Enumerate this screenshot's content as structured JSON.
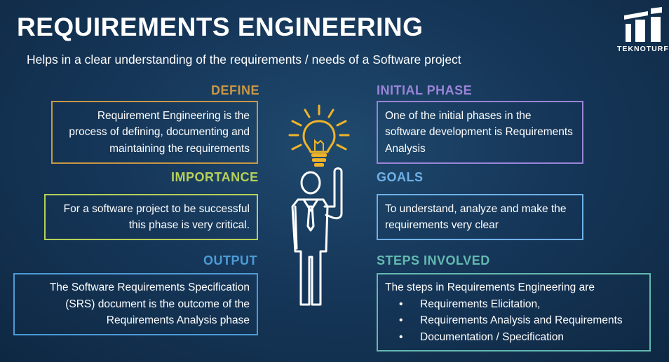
{
  "title": "REQUIREMENTS ENGINEERING",
  "subtitle": "Helps in a clear understanding of the requirements / needs of a Software project",
  "logo": {
    "text": "TEKNOTURF",
    "icon": "teknoturf-logo-icon"
  },
  "colors": {
    "define": "#c99746",
    "importance": "#b6d05a",
    "output": "#4d9bd6",
    "initial_phase": "#9a84d8",
    "goals": "#6fb1e8",
    "steps": "#64b9b0"
  },
  "sections": {
    "define": {
      "heading": "DEFINE",
      "text": "Requirement Engineering is the process of defining, documenting and maintaining the requirements"
    },
    "importance": {
      "heading": "IMPORTANCE",
      "text": "For a software project to be successful this phase is very critical."
    },
    "output": {
      "heading": "OUTPUT",
      "text": "The Software Requirements Specification (SRS) document is the outcome of the Requirements Analysis phase"
    },
    "initial_phase": {
      "heading": "INITIAL PHASE",
      "text": "One of the initial phases in the software development is Requirements Analysis"
    },
    "goals": {
      "heading": "GOALS",
      "text": "To understand, analyze and make the requirements very clear"
    },
    "steps": {
      "heading": "STEPS INVOLVED",
      "intro": "The steps in Requirements Engineering are",
      "items": [
        "Requirements Elicitation,",
        "Requirements Analysis and Requirements",
        "Documentation / Specification"
      ]
    }
  },
  "illustration": {
    "icons": [
      "lightbulb-icon",
      "person-pointing-up-icon"
    ]
  }
}
